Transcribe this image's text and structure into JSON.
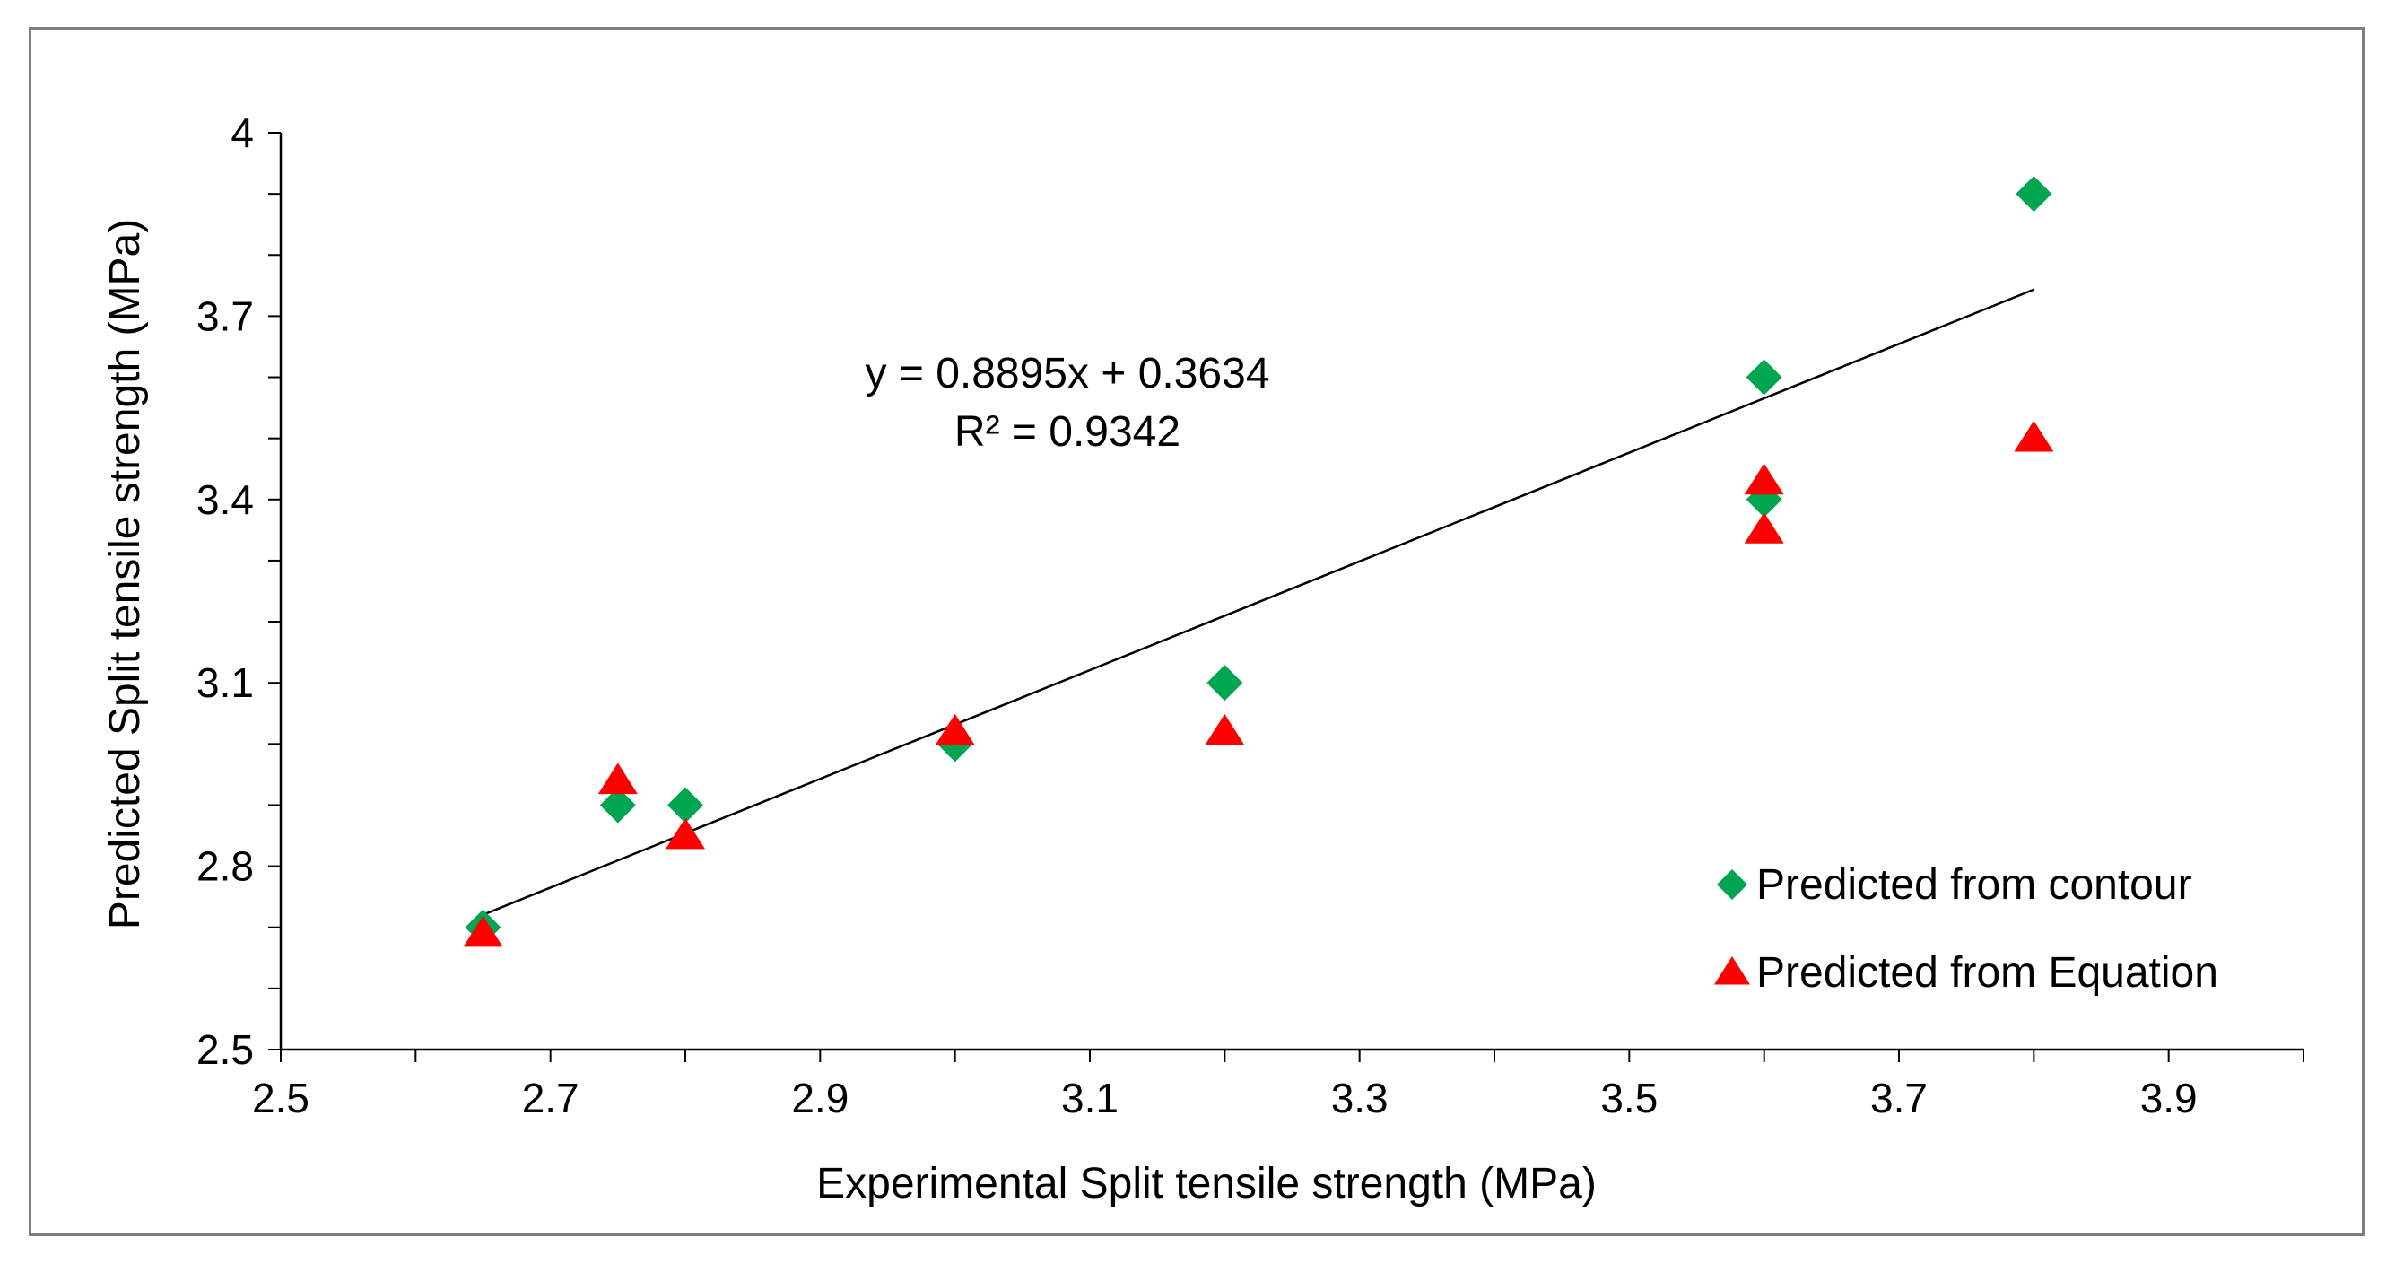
{
  "chart_data": {
    "type": "scatter",
    "title": "",
    "xlabel": "Experimental Split tensile strength (MPa)",
    "ylabel": "Predicted Split tensile strength (MPa)",
    "xlim": [
      2.5,
      4.0
    ],
    "ylim": [
      2.5,
      4.0
    ],
    "xticks": [
      "2.5",
      "2.7",
      "2.9",
      "3.1",
      "3.3",
      "3.5",
      "3.7",
      "3.9"
    ],
    "yticks": [
      "2.5",
      "2.8",
      "3.1",
      "3.4",
      "3.7",
      "4"
    ],
    "grid": false,
    "legend_position": "bottom-right",
    "series": [
      {
        "name": "Predicted from contour",
        "marker": "diamond",
        "color": "#00a550",
        "points": [
          {
            "x": 2.65,
            "y": 2.7
          },
          {
            "x": 2.75,
            "y": 2.9
          },
          {
            "x": 2.8,
            "y": 2.9
          },
          {
            "x": 3.0,
            "y": 3.0
          },
          {
            "x": 3.2,
            "y": 3.1
          },
          {
            "x": 3.6,
            "y": 3.6
          },
          {
            "x": 3.6,
            "y": 3.4
          },
          {
            "x": 3.8,
            "y": 3.9
          }
        ]
      },
      {
        "name": "Predicted from Equation",
        "marker": "triangle",
        "color": "#ff0000",
        "points": [
          {
            "x": 2.65,
            "y": 2.69
          },
          {
            "x": 2.75,
            "y": 2.94
          },
          {
            "x": 2.8,
            "y": 2.85
          },
          {
            "x": 3.0,
            "y": 3.02
          },
          {
            "x": 3.2,
            "y": 3.02
          },
          {
            "x": 3.6,
            "y": 3.43
          },
          {
            "x": 3.6,
            "y": 3.35
          },
          {
            "x": 3.8,
            "y": 3.5
          }
        ]
      }
    ],
    "trendline": {
      "slope": 0.8895,
      "intercept": 0.3634,
      "x_range": [
        2.65,
        3.8
      ],
      "color": "#000000",
      "equation_label": "y = 0.8895x + 0.3634",
      "r2_label": "R² = 0.9342"
    }
  }
}
